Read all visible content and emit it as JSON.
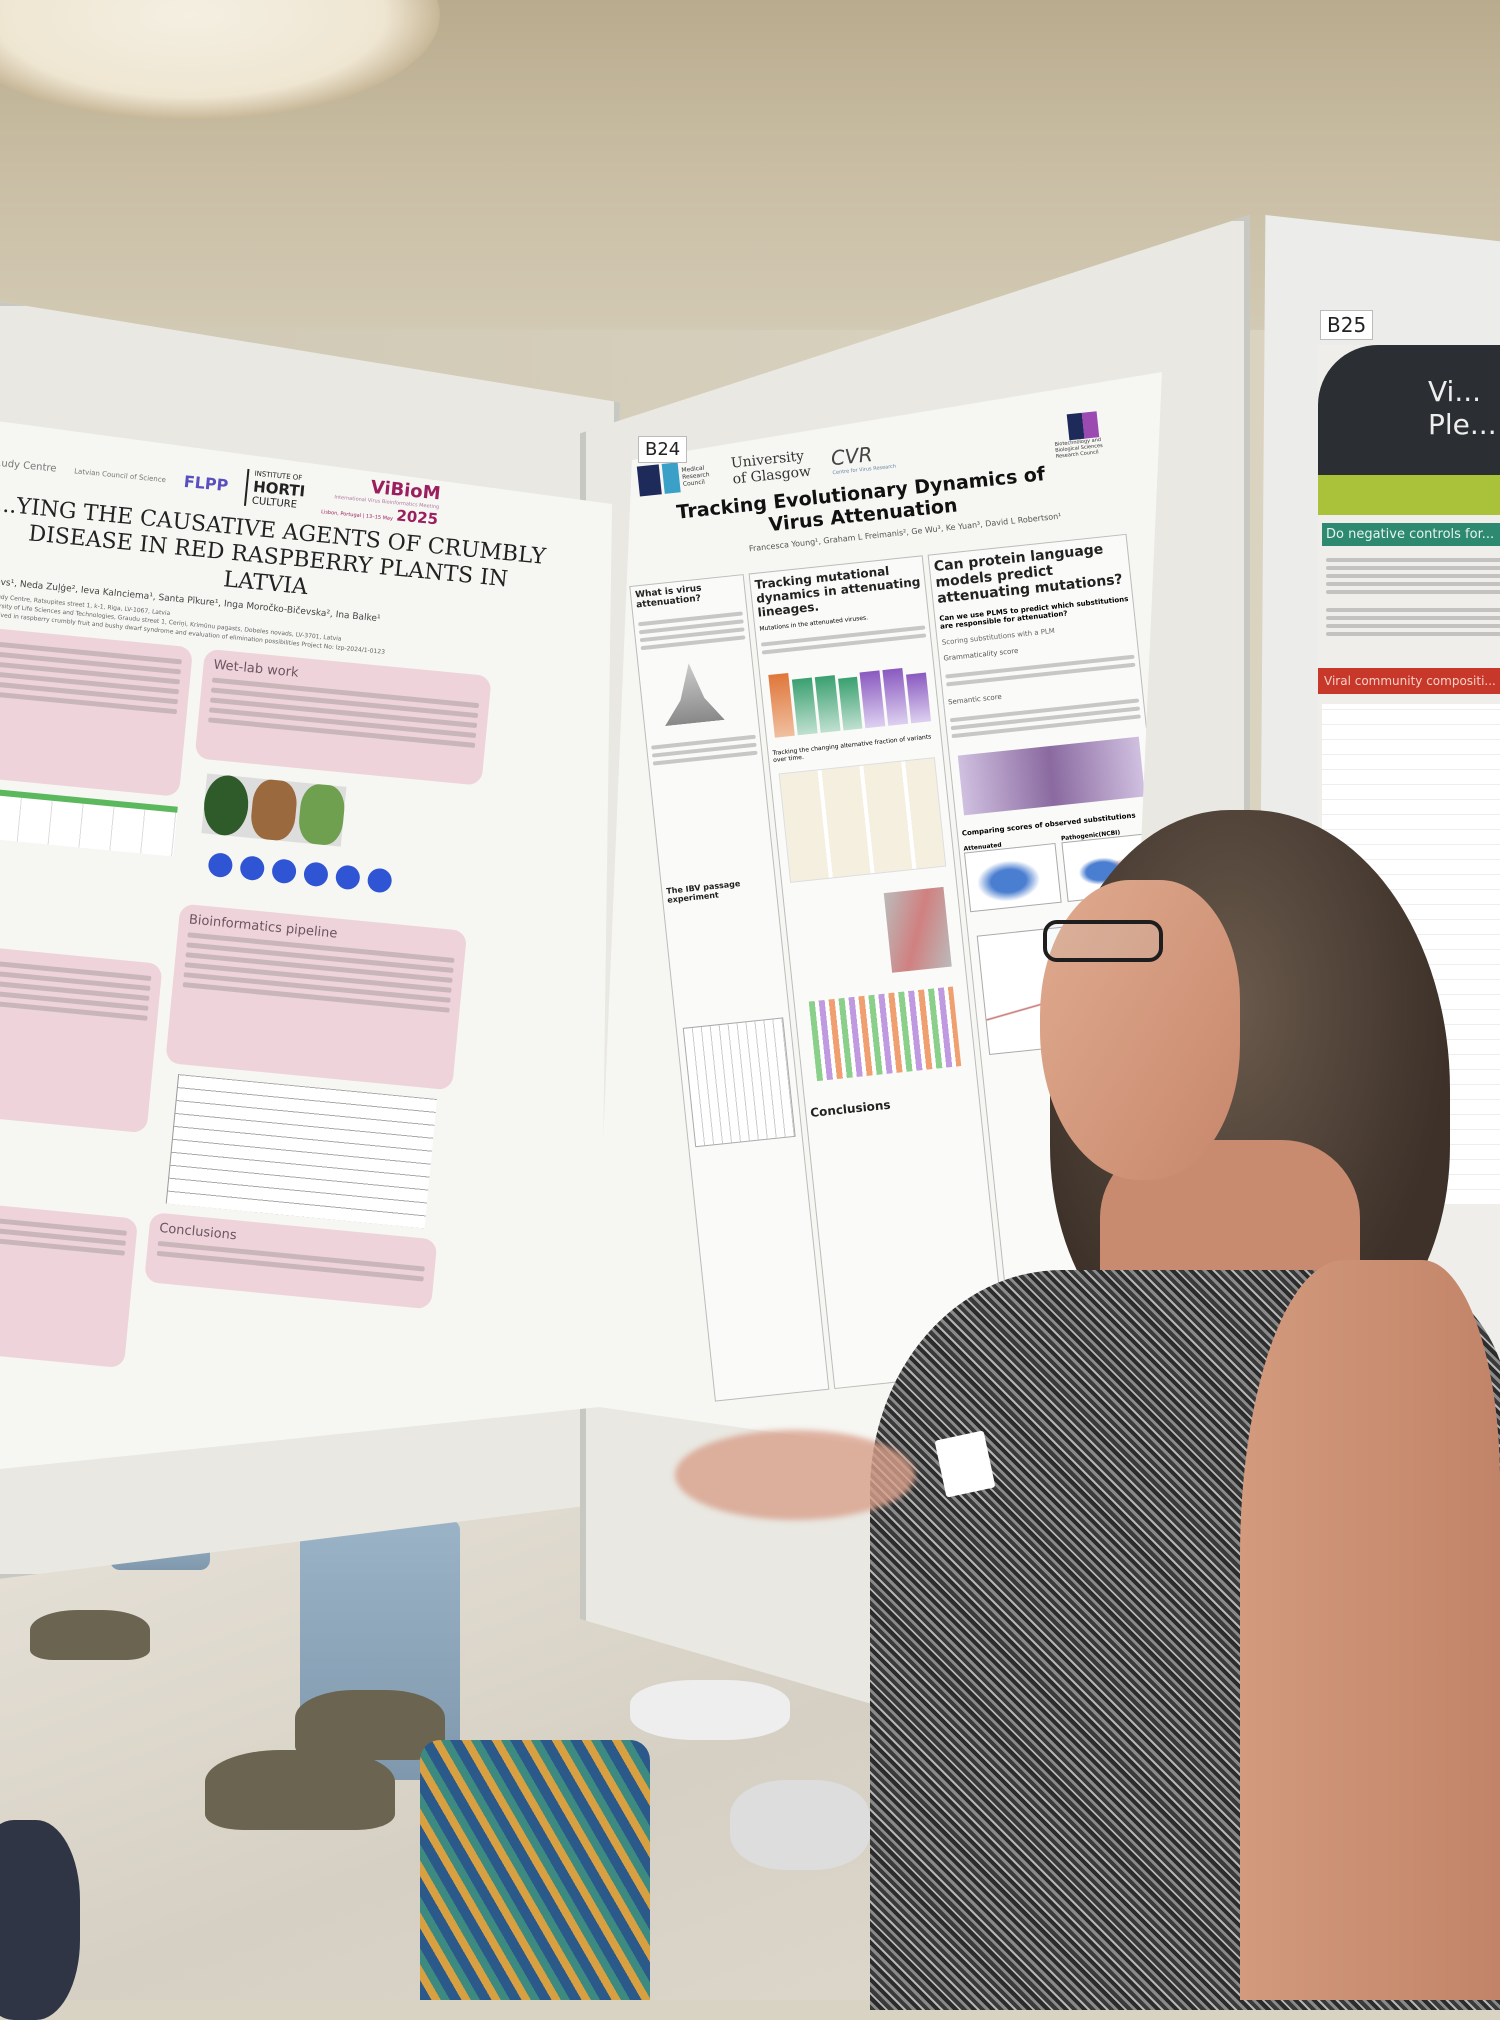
{
  "scene": {
    "description_colors": {
      "ceiling": "#c9bea4",
      "floor": "#e1dbcf",
      "poster_pink": "#efd3da",
      "vibiom_magenta": "#9b1f5e"
    }
  },
  "left_poster": {
    "logos": {
      "partial_left": "...udy Centre",
      "council": "Latvian Council of Science",
      "flpp": "FLPP",
      "institute": [
        "INSTITUTE OF",
        "HORTI",
        "CULTURE"
      ],
      "vibiom": "ViBioM",
      "vibiom_sub": "International Virus Bioinformatics Meeting",
      "vibiom_place": "Lisbon, Portugal | 13–15 May",
      "vibiom_year": "2025"
    },
    "title_lines": [
      "...YING THE CAUSATIVE AGENTS OF CRUMBLY",
      "DISEASE IN RED RASPBERRY PLANTS IN",
      "LATVIA"
    ],
    "authors": "...elovs¹, Neda Zuļģe², Ieva Kalnciema¹, Santa Pīkure¹, Inga Moročko-Bičevska², Ina Balke¹",
    "affiliations": [
      "...nt Study Centre, Ratsupites street 1, k-1, Riga, LV-1067, Latvia",
      "...University of Life Sciences and Technologies, Graudu street 1, Ceriņi, Krimūnu pagasts, Dobeles novads, LV-3701, Latvia"
    ],
    "project": "...s involved in raspberry crumbly fruit and bushy dwarf syndrome and evaluation of elimination possibilities Project No: lzp-2024/1-0123",
    "sections": {
      "wetlab": "Wet-lab work",
      "bioinformatics": "Bioinformatics pipeline",
      "conclusions": "Conclusions"
    }
  },
  "middle_poster": {
    "board_label": "B24",
    "logos": {
      "ukri_mrc": "Medical Research Council",
      "glasgow": "University of Glasgow",
      "cvr": "CVR",
      "cvr_sub": "Centre for Virus Research",
      "bbsrc": "Biotechnology and Biological Sciences Research Council"
    },
    "title_lines": [
      "Tracking Evolutionary Dynamics of",
      "Virus Attenuation"
    ],
    "authors": "Francesca Young¹, Graham L Freimanis², Ge Wu³, Ke Yuan³, David L Robertson¹",
    "sections": {
      "col1": "What is virus attenuation?",
      "col1b": "The IBV passage experiment",
      "col2": "Tracking mutational dynamics in attenuating lineages.",
      "col2_sub": "Mutations in the attenuated viruses.",
      "col2_sub2": "Tracking the changing alternative fraction of variants over time.",
      "col2_conc": "Conclusions",
      "col3": "Can protein language models predict attenuating mutations?",
      "col3_q": "Can we use PLMS to predict which substitutions are responsible for attenuation?",
      "col3_sub": "Scoring substitutions with a PLM",
      "col3_gram": "Grammaticality score",
      "col3_sem": "Semantic score",
      "col3_cmp": "Comparing scores of observed substitutions",
      "col3_att": "Attenuated",
      "col3_path": "Pathogenic(NCBI)"
    }
  },
  "right_poster": {
    "board_label": "B25",
    "heading_partial": "Do negative controls for...",
    "title_partial": "Vi... Ple...",
    "red_bar_partial": "Viral community compositi..."
  }
}
